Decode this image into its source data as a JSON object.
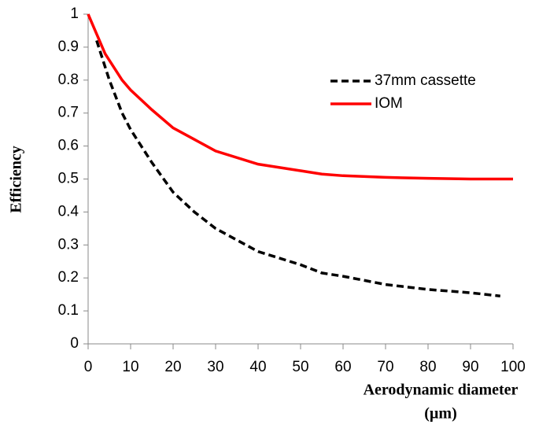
{
  "chart_data": {
    "type": "line",
    "y_label": "Efficiency",
    "x_label": [
      "Aerodynamic diameter",
      "(µm)"
    ],
    "xlim": [
      0,
      100
    ],
    "xticks": [
      0,
      10,
      20,
      30,
      40,
      50,
      60,
      70,
      80,
      90,
      100
    ],
    "ylim": [
      0,
      1
    ],
    "yticks": [
      0,
      0.1,
      0.2,
      0.3,
      0.4,
      0.5,
      0.6,
      0.7,
      0.8,
      0.9,
      1
    ],
    "legend": "upper right",
    "series": [
      {
        "name": "37mm cassette",
        "color": "#000000",
        "dash": true,
        "x": [
          2,
          5,
          8,
          10,
          15,
          20,
          25,
          30,
          40,
          50,
          55,
          60,
          70,
          80,
          90,
          97
        ],
        "values": [
          0.92,
          0.8,
          0.7,
          0.65,
          0.55,
          0.46,
          0.4,
          0.35,
          0.28,
          0.24,
          0.215,
          0.205,
          0.18,
          0.165,
          0.155,
          0.145
        ]
      },
      {
        "name": "IOM",
        "color": "#ff0000",
        "dash": false,
        "x": [
          0,
          2,
          4,
          6,
          8,
          10,
          15,
          20,
          25,
          30,
          40,
          50,
          55,
          60,
          70,
          80,
          90,
          100
        ],
        "values": [
          1,
          0.94,
          0.88,
          0.84,
          0.8,
          0.77,
          0.71,
          0.655,
          0.62,
          0.585,
          0.545,
          0.525,
          0.515,
          0.51,
          0.505,
          0.502,
          0.5,
          0.5
        ]
      }
    ]
  }
}
